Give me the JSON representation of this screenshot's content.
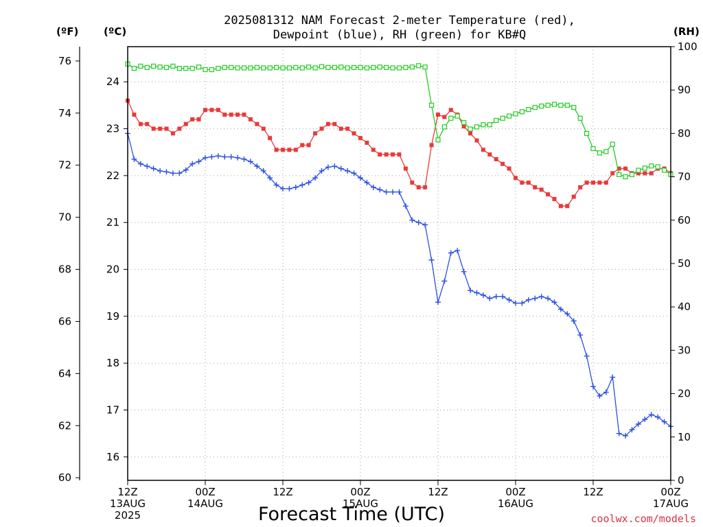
{
  "title_line1": "2025081312 NAM Forecast 2-meter Temperature (red),",
  "title_line2": "Dewpoint (blue), RH (green) for KB#Q",
  "unit_f": "(ºF)",
  "unit_c": "(ºC)",
  "unit_rh": "(RH)",
  "xtitle": "Forecast Time (UTC)",
  "credit": "coolwx.com/models",
  "colors": {
    "temp": "#e83a3a",
    "dewpoint": "#2b4fe0",
    "rh": "#22cc22"
  },
  "chart_data": {
    "type": "line",
    "x_unit": "hours from 2025-08-13 12Z",
    "x_range": [
      0,
      84
    ],
    "x_ticks": [
      {
        "hour": 0,
        "l1": "12Z",
        "l2": "13AUG",
        "l3": "2025"
      },
      {
        "hour": 12,
        "l1": "00Z",
        "l2": "14AUG",
        "l3": ""
      },
      {
        "hour": 24,
        "l1": "12Z",
        "l2": "",
        "l3": ""
      },
      {
        "hour": 36,
        "l1": "00Z",
        "l2": "15AUG",
        "l3": ""
      },
      {
        "hour": 48,
        "l1": "12Z",
        "l2": "",
        "l3": ""
      },
      {
        "hour": 60,
        "l1": "00Z",
        "l2": "16AUG",
        "l3": ""
      },
      {
        "hour": 72,
        "l1": "12Z",
        "l2": "",
        "l3": ""
      },
      {
        "hour": 84,
        "l1": "00Z",
        "l2": "17AUG",
        "l3": ""
      }
    ],
    "y_celsius_range": [
      15.5,
      24.75
    ],
    "y_celsius_ticks": [
      "16",
      "17",
      "18",
      "19",
      "20",
      "21",
      "22",
      "23",
      "24"
    ],
    "y_fahrenheit_ticks": [
      "60",
      "62",
      "64",
      "66",
      "68",
      "70",
      "72",
      "74",
      "76"
    ],
    "y_rh_range": [
      0,
      100
    ],
    "y_rh_ticks": [
      "0",
      "10",
      "20",
      "30",
      "40",
      "50",
      "60",
      "70",
      "80",
      "90",
      "100"
    ],
    "grid": true,
    "series": [
      {
        "key": "temp",
        "marker": "filled-square",
        "points": [
          [
            0,
            23.6
          ],
          [
            1,
            23.3
          ],
          [
            2,
            23.1
          ],
          [
            3,
            23.1
          ],
          [
            4,
            23.0
          ],
          [
            5,
            23.0
          ],
          [
            6,
            23.0
          ],
          [
            7,
            22.9
          ],
          [
            8,
            23.0
          ],
          [
            9,
            23.1
          ],
          [
            10,
            23.2
          ],
          [
            11,
            23.2
          ],
          [
            12,
            23.4
          ],
          [
            13,
            23.4
          ],
          [
            14,
            23.4
          ],
          [
            15,
            23.3
          ],
          [
            16,
            23.3
          ],
          [
            17,
            23.3
          ],
          [
            18,
            23.3
          ],
          [
            19,
            23.2
          ],
          [
            20,
            23.1
          ],
          [
            21,
            23.0
          ],
          [
            22,
            22.8
          ],
          [
            23,
            22.55
          ],
          [
            24,
            22.55
          ],
          [
            25,
            22.55
          ],
          [
            26,
            22.55
          ],
          [
            27,
            22.65
          ],
          [
            28,
            22.65
          ],
          [
            29,
            22.9
          ],
          [
            30,
            23.0
          ],
          [
            31,
            23.1
          ],
          [
            32,
            23.1
          ],
          [
            33,
            23.0
          ],
          [
            34,
            23.0
          ],
          [
            35,
            22.9
          ],
          [
            36,
            22.8
          ],
          [
            37,
            22.7
          ],
          [
            38,
            22.55
          ],
          [
            39,
            22.45
          ],
          [
            40,
            22.45
          ],
          [
            41,
            22.45
          ],
          [
            42,
            22.45
          ],
          [
            43,
            22.15
          ],
          [
            44,
            21.85
          ],
          [
            45,
            21.75
          ],
          [
            46,
            21.75
          ],
          [
            47,
            22.65
          ],
          [
            48,
            23.3
          ],
          [
            49,
            23.25
          ],
          [
            50,
            23.4
          ],
          [
            51,
            23.3
          ],
          [
            52,
            23.05
          ],
          [
            53,
            22.9
          ],
          [
            54,
            22.75
          ],
          [
            55,
            22.55
          ],
          [
            56,
            22.45
          ],
          [
            57,
            22.35
          ],
          [
            58,
            22.25
          ],
          [
            59,
            22.15
          ],
          [
            60,
            21.95
          ],
          [
            61,
            21.85
          ],
          [
            62,
            21.85
          ],
          [
            63,
            21.75
          ],
          [
            64,
            21.7
          ],
          [
            65,
            21.6
          ],
          [
            66,
            21.5
          ],
          [
            67,
            21.35
          ],
          [
            68,
            21.35
          ],
          [
            69,
            21.55
          ],
          [
            70,
            21.75
          ],
          [
            71,
            21.85
          ],
          [
            72,
            21.85
          ],
          [
            73,
            21.85
          ],
          [
            74,
            21.85
          ],
          [
            75,
            22.05
          ],
          [
            76,
            22.15
          ],
          [
            77,
            22.15
          ],
          [
            78,
            22.05
          ],
          [
            79,
            22.05
          ],
          [
            80,
            22.05
          ],
          [
            81,
            22.05
          ],
          [
            82,
            22.15
          ],
          [
            83,
            22.15
          ],
          [
            84,
            22.05
          ]
        ]
      },
      {
        "key": "dewpoint",
        "marker": "plus",
        "points": [
          [
            0,
            22.9
          ],
          [
            1,
            22.35
          ],
          [
            2,
            22.25
          ],
          [
            3,
            22.2
          ],
          [
            4,
            22.15
          ],
          [
            5,
            22.1
          ],
          [
            6,
            22.08
          ],
          [
            7,
            22.05
          ],
          [
            8,
            22.05
          ],
          [
            9,
            22.12
          ],
          [
            10,
            22.25
          ],
          [
            11,
            22.3
          ],
          [
            12,
            22.38
          ],
          [
            13,
            22.4
          ],
          [
            14,
            22.42
          ],
          [
            15,
            22.4
          ],
          [
            16,
            22.4
          ],
          [
            17,
            22.38
          ],
          [
            18,
            22.35
          ],
          [
            19,
            22.3
          ],
          [
            20,
            22.2
          ],
          [
            21,
            22.1
          ],
          [
            22,
            21.95
          ],
          [
            23,
            21.8
          ],
          [
            24,
            21.72
          ],
          [
            25,
            21.72
          ],
          [
            26,
            21.75
          ],
          [
            27,
            21.8
          ],
          [
            28,
            21.85
          ],
          [
            29,
            21.95
          ],
          [
            30,
            22.1
          ],
          [
            31,
            22.18
          ],
          [
            32,
            22.2
          ],
          [
            33,
            22.15
          ],
          [
            34,
            22.1
          ],
          [
            35,
            22.05
          ],
          [
            36,
            21.95
          ],
          [
            37,
            21.85
          ],
          [
            38,
            21.75
          ],
          [
            39,
            21.7
          ],
          [
            40,
            21.65
          ],
          [
            41,
            21.65
          ],
          [
            42,
            21.65
          ],
          [
            43,
            21.35
          ],
          [
            44,
            21.05
          ],
          [
            45,
            21.0
          ],
          [
            46,
            20.95
          ],
          [
            47,
            20.2
          ],
          [
            48,
            19.3
          ],
          [
            49,
            19.75
          ],
          [
            50,
            20.35
          ],
          [
            51,
            20.4
          ],
          [
            52,
            19.95
          ],
          [
            53,
            19.55
          ],
          [
            54,
            19.5
          ],
          [
            55,
            19.45
          ],
          [
            56,
            19.38
          ],
          [
            57,
            19.42
          ],
          [
            58,
            19.42
          ],
          [
            59,
            19.35
          ],
          [
            60,
            19.28
          ],
          [
            61,
            19.28
          ],
          [
            62,
            19.35
          ],
          [
            63,
            19.38
          ],
          [
            64,
            19.42
          ],
          [
            65,
            19.38
          ],
          [
            66,
            19.3
          ],
          [
            67,
            19.15
          ],
          [
            68,
            19.05
          ],
          [
            69,
            18.9
          ],
          [
            70,
            18.6
          ],
          [
            71,
            18.15
          ],
          [
            72,
            17.5
          ],
          [
            73,
            17.3
          ],
          [
            74,
            17.38
          ],
          [
            75,
            17.7
          ],
          [
            76,
            16.5
          ],
          [
            77,
            16.45
          ],
          [
            78,
            16.58
          ],
          [
            79,
            16.7
          ],
          [
            80,
            16.8
          ],
          [
            81,
            16.9
          ],
          [
            82,
            16.85
          ],
          [
            83,
            16.75
          ],
          [
            84,
            16.65
          ]
        ]
      },
      {
        "key": "rh",
        "marker": "open-square",
        "points": [
          [
            0,
            96
          ],
          [
            1,
            95
          ],
          [
            2,
            95.5
          ],
          [
            3,
            95.2
          ],
          [
            4,
            95.5
          ],
          [
            5,
            95.3
          ],
          [
            6,
            95.2
          ],
          [
            7,
            95.5
          ],
          [
            8,
            95
          ],
          [
            9,
            95
          ],
          [
            10,
            95
          ],
          [
            11,
            95.3
          ],
          [
            12,
            94.7
          ],
          [
            13,
            94.7
          ],
          [
            14,
            95
          ],
          [
            15,
            95.2
          ],
          [
            16,
            95.2
          ],
          [
            17,
            95.1
          ],
          [
            18,
            95.1
          ],
          [
            19,
            95.1
          ],
          [
            20,
            95.2
          ],
          [
            21,
            95.1
          ],
          [
            22,
            95.1
          ],
          [
            23,
            95.2
          ],
          [
            24,
            95.1
          ],
          [
            25,
            95.1
          ],
          [
            26,
            95.2
          ],
          [
            27,
            95.1
          ],
          [
            28,
            95.3
          ],
          [
            29,
            95.1
          ],
          [
            30,
            95.4
          ],
          [
            31,
            95.2
          ],
          [
            32,
            95.2
          ],
          [
            33,
            95.3
          ],
          [
            34,
            95.1
          ],
          [
            35,
            95.2
          ],
          [
            36,
            95.2
          ],
          [
            37,
            95.1
          ],
          [
            38,
            95.2
          ],
          [
            39,
            95.3
          ],
          [
            40,
            95.2
          ],
          [
            41,
            95.1
          ],
          [
            42,
            95.1
          ],
          [
            43,
            95.2
          ],
          [
            44,
            95.3
          ],
          [
            45,
            95.6
          ],
          [
            46,
            95.3
          ],
          [
            47,
            86.5
          ],
          [
            48,
            78.5
          ],
          [
            49,
            81.5
          ],
          [
            50,
            83.5
          ],
          [
            51,
            84
          ],
          [
            52,
            82.5
          ],
          [
            53,
            81
          ],
          [
            54,
            81.5
          ],
          [
            55,
            82
          ],
          [
            56,
            82
          ],
          [
            57,
            83
          ],
          [
            58,
            83.5
          ],
          [
            59,
            84
          ],
          [
            60,
            84.5
          ],
          [
            61,
            85
          ],
          [
            62,
            85.5
          ],
          [
            63,
            86
          ],
          [
            64,
            86.3
          ],
          [
            65,
            86.5
          ],
          [
            66,
            86.7
          ],
          [
            67,
            86.5
          ],
          [
            68,
            86.5
          ],
          [
            69,
            86
          ],
          [
            70,
            83.5
          ],
          [
            71,
            80
          ],
          [
            72,
            76.5
          ],
          [
            73,
            75.5
          ],
          [
            74,
            75.8
          ],
          [
            75,
            77.5
          ],
          [
            76,
            70.5
          ],
          [
            77,
            70
          ],
          [
            78,
            70.5
          ],
          [
            79,
            71.5
          ],
          [
            80,
            72
          ],
          [
            81,
            72.5
          ],
          [
            82,
            72.3
          ],
          [
            83,
            71.5
          ],
          [
            84,
            70.5
          ]
        ]
      }
    ]
  }
}
